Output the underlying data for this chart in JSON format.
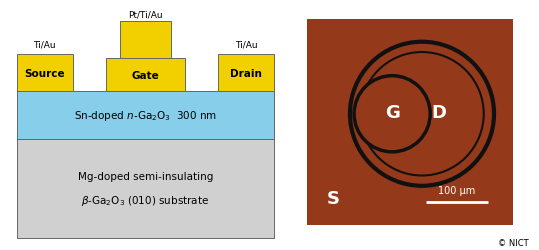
{
  "fig_width": 5.39,
  "fig_height": 2.51,
  "dpi": 100,
  "bg_color": "#ffffff",
  "left_panel": {
    "source_drain_color": "#f2d000",
    "gate_color": "#f2d000",
    "layer1_color": "#87ceeb",
    "layer2_color": "#d0d0d0",
    "outline_color": "#666666",
    "source_label": "Source",
    "drain_label": "Drain",
    "gate_label": "Gate",
    "source_metal_label": "Ti/Au",
    "drain_metal_label": "Ti/Au",
    "gate_metal_label": "Pt/Ti/Au"
  },
  "right_panel": {
    "bg_color": "#943A1A",
    "ring_color": "#111111",
    "label_G": "G",
    "label_D": "D",
    "label_S": "S",
    "scalebar_label": "100 μm",
    "credit": "© NICT"
  }
}
